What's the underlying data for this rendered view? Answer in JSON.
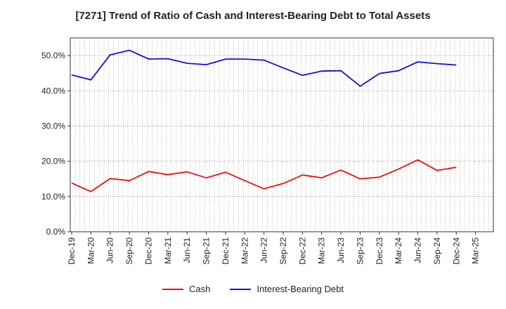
{
  "title": "[7271]  Trend of Ratio of Cash and Interest-Bearing Debt to Total Assets",
  "chart_data": {
    "type": "line",
    "title": "[7271]  Trend of Ratio of Cash and Interest-Bearing Debt to Total Assets",
    "categories": [
      "Dec-19",
      "Mar-20",
      "Jun-20",
      "Sep-20",
      "Dec-20",
      "Mar-21",
      "Jun-21",
      "Sep-21",
      "Dec-21",
      "Mar-22",
      "Jun-22",
      "Sep-22",
      "Dec-22",
      "Mar-23",
      "Jun-23",
      "Sep-23",
      "Dec-23",
      "Mar-24",
      "Jun-24",
      "Sep-24",
      "Dec-24",
      "Mar-25"
    ],
    "ylim": [
      0,
      55
    ],
    "yticks": [
      "0.0%",
      "10.0%",
      "20.0%",
      "30.0%",
      "40.0%",
      "50.0%"
    ],
    "ytick_values": [
      0,
      10,
      20,
      30,
      40,
      50
    ],
    "grid": true,
    "legend_position": "bottom-center",
    "series": [
      {
        "name": "Cash",
        "color": "#ee1111",
        "values": [
          13.8,
          11.4,
          15.1,
          14.5,
          17.1,
          16.2,
          17.0,
          15.3,
          16.9,
          14.5,
          12.2,
          13.7,
          16.1,
          15.3,
          17.5,
          15.0,
          15.5,
          17.8,
          20.4,
          17.4,
          18.3,
          null
        ]
      },
      {
        "name": "Interest-Bearing Debt",
        "color": "#1111dd",
        "values": [
          44.5,
          43.1,
          50.2,
          51.5,
          49.0,
          49.1,
          47.8,
          47.4,
          49.0,
          49.0,
          48.7,
          46.5,
          44.4,
          45.6,
          45.7,
          41.3,
          44.9,
          45.7,
          48.2,
          47.7,
          47.3,
          null
        ]
      }
    ]
  }
}
